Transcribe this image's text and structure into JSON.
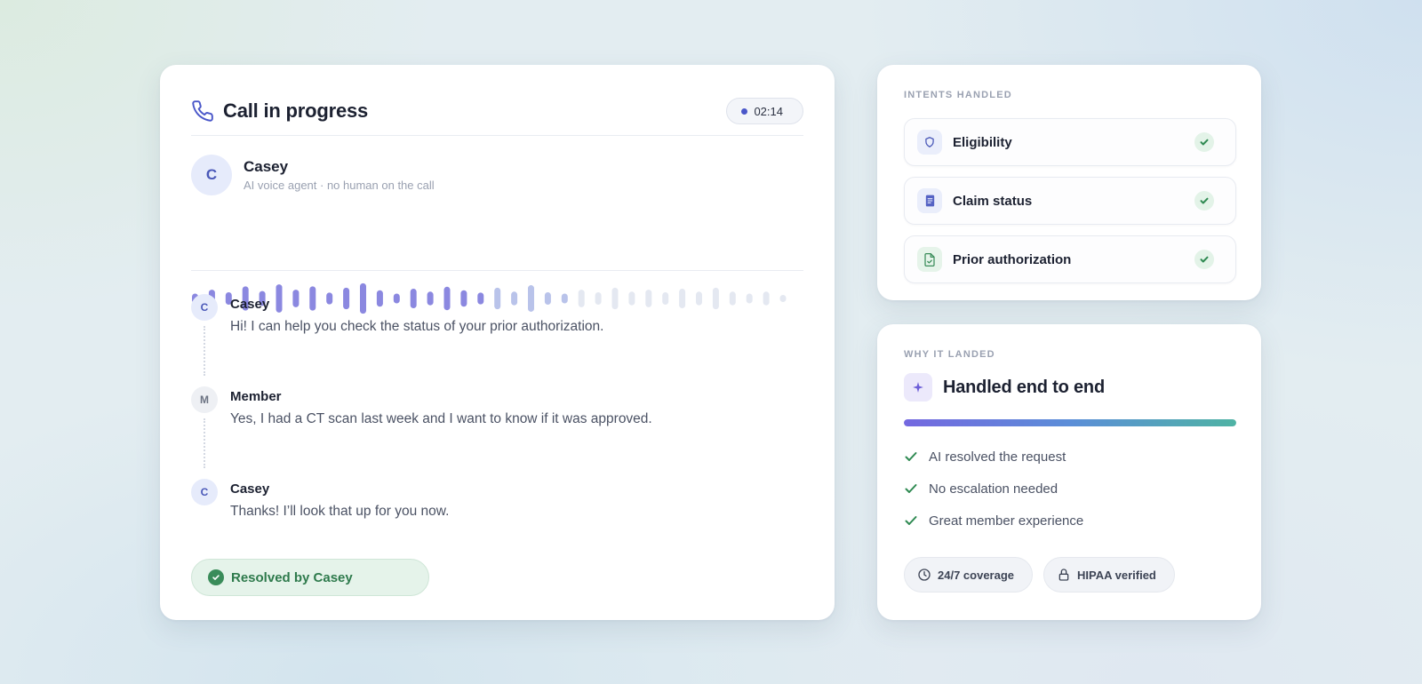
{
  "call": {
    "title": "Call in progress",
    "timer": "02:14",
    "agent": {
      "initial": "C",
      "name": "Casey",
      "subtitle": "AI voice agent · no human on the call"
    },
    "waveform": {
      "played_color": "#8b88e0",
      "mid_color": "#b9c3ea",
      "idle_color": "#e4e8f1",
      "levels": [
        0.25,
        0.45,
        0.32,
        0.62,
        0.38,
        0.72,
        0.45,
        0.62,
        0.3,
        0.55,
        0.78,
        0.42,
        0.25,
        0.5,
        0.35,
        0.6,
        0.42,
        0.3,
        0.55,
        0.35,
        0.68,
        0.32,
        0.25,
        0.45,
        0.32,
        0.55,
        0.35,
        0.45,
        0.32,
        0.5,
        0.35,
        0.55,
        0.35,
        0.25,
        0.35,
        0.18
      ],
      "played_count": 18,
      "mid_count": 5
    },
    "transcript": [
      {
        "initial": "C",
        "role": "agent",
        "speaker": "Casey",
        "text": "Hi! I can help you check the status of your prior authorization."
      },
      {
        "initial": "M",
        "role": "member",
        "speaker": "Member",
        "text": "Yes, I had a CT scan last week and I want to know if it was approved."
      },
      {
        "initial": "C",
        "role": "agent",
        "speaker": "Casey",
        "text": "Thanks! I’ll look that up for you now."
      }
    ],
    "resolved_label": "Resolved by Casey"
  },
  "intents": {
    "section_label": "INTENTS HANDLED",
    "items": [
      {
        "label": "Eligibility",
        "icon": "shield-icon",
        "status": "done"
      },
      {
        "label": "Claim status",
        "icon": "document-icon",
        "status": "done"
      },
      {
        "label": "Prior authorization",
        "icon": "file-check-icon",
        "status": "done"
      }
    ]
  },
  "why": {
    "section_label": "WHY IT LANDED",
    "title": "Handled end to end",
    "progress": 1.0,
    "reasons": [
      "AI resolved the request",
      "No escalation needed",
      "Great member experience"
    ],
    "badges": [
      {
        "label": "24/7 coverage",
        "icon": "clock-icon"
      },
      {
        "label": "HIPAA verified",
        "icon": "lock-icon"
      }
    ]
  },
  "colors": {
    "accent": "#4a57c9",
    "success": "#3a8c5a"
  }
}
